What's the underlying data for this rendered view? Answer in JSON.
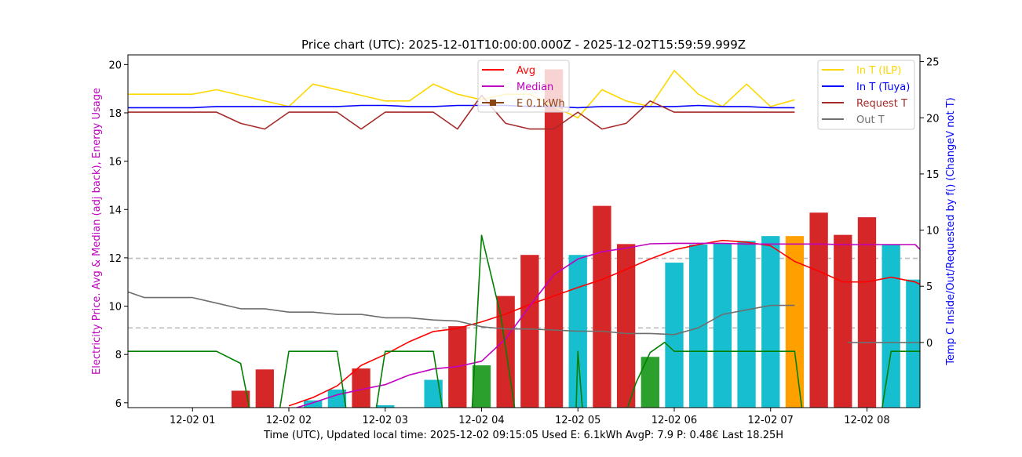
{
  "chart_data": {
    "type": "bar",
    "title": "Price chart (UTC): 2025-12-01T10:00:00.000Z - 2025-12-02T15:59:59.999Z",
    "xlabel": "Time (UTC), Updated local time: 2025-12-02 09:15:05 Used E: 6.1kWh AvgP: 7.9 P: 0.48€ Last 18.25H",
    "ylabel": "Electricity Price. Avg & Median (adj back), Energy Usage",
    "y2label": "Temp C Inside/Out/Requested by f() (ChangeV not T)",
    "xlim": [
      0.33,
      8.55
    ],
    "ylim": [
      5.8,
      20.4
    ],
    "y2lim": [
      -5.8,
      25.6
    ],
    "x_ticks": [
      1,
      2,
      3,
      4,
      5,
      6,
      7,
      8
    ],
    "x_tick_labels": [
      "12-02 01",
      "12-02 02",
      "12-02 03",
      "12-02 04",
      "12-02 05",
      "12-02 06",
      "12-02 07",
      "12-02 08"
    ],
    "y_ticks": [
      6,
      8,
      10,
      12,
      14,
      16,
      18,
      20
    ],
    "y2_ticks": [
      0,
      5,
      10,
      15,
      20,
      25
    ],
    "hlines": [
      11.98,
      9.1
    ],
    "bar_width": 0.19,
    "bars": [
      {
        "x": 1.5,
        "value": 6.5,
        "color": "#d62728"
      },
      {
        "x": 1.75,
        "value": 7.38,
        "color": "#d62728"
      },
      {
        "x": 2.25,
        "value": 6.1,
        "color": "#17becf"
      },
      {
        "x": 2.5,
        "value": 6.55,
        "color": "#17becf"
      },
      {
        "x": 2.75,
        "value": 7.42,
        "color": "#d62728"
      },
      {
        "x": 3.0,
        "value": 5.9,
        "color": "#17becf"
      },
      {
        "x": 3.5,
        "value": 6.95,
        "color": "#17becf"
      },
      {
        "x": 3.75,
        "value": 9.17,
        "color": "#d62728"
      },
      {
        "x": 4.0,
        "value": 7.55,
        "color": "#2ca02c"
      },
      {
        "x": 4.25,
        "value": 10.42,
        "color": "#d62728"
      },
      {
        "x": 4.5,
        "value": 12.12,
        "color": "#d62728"
      },
      {
        "x": 4.75,
        "value": 19.8,
        "color": "#d62728"
      },
      {
        "x": 5.0,
        "value": 12.12,
        "color": "#17becf"
      },
      {
        "x": 5.25,
        "value": 14.15,
        "color": "#d62728"
      },
      {
        "x": 5.5,
        "value": 12.57,
        "color": "#d62728"
      },
      {
        "x": 5.75,
        "value": 7.9,
        "color": "#2ca02c"
      },
      {
        "x": 6.0,
        "value": 11.8,
        "color": "#17becf"
      },
      {
        "x": 6.25,
        "value": 12.55,
        "color": "#17becf"
      },
      {
        "x": 6.5,
        "value": 12.6,
        "color": "#17becf"
      },
      {
        "x": 6.75,
        "value": 12.7,
        "color": "#17becf"
      },
      {
        "x": 7.0,
        "value": 12.9,
        "color": "#17becf"
      },
      {
        "x": 7.25,
        "value": 12.9,
        "color": "#ff9f00"
      },
      {
        "x": 7.5,
        "value": 13.87,
        "color": "#d62728"
      },
      {
        "x": 7.75,
        "value": 12.95,
        "color": "#d62728"
      },
      {
        "x": 8.0,
        "value": 13.68,
        "color": "#d62728"
      },
      {
        "x": 8.25,
        "value": 12.55,
        "color": "#17becf"
      },
      {
        "x": 8.5,
        "value": 11.1,
        "color": "#17becf"
      }
    ],
    "series": [
      {
        "name": "Avg",
        "axis": "left",
        "color": "#ff0000",
        "width": 1.6,
        "x": [
          2.0,
          2.25,
          2.5,
          2.75,
          3.0,
          3.25,
          3.5,
          3.75,
          4.0,
          4.25,
          4.5,
          4.75,
          5.0,
          5.25,
          5.5,
          5.75,
          6.0,
          6.25,
          6.5,
          6.75,
          7.0,
          7.25,
          7.5,
          7.75,
          8.0,
          8.25,
          8.5,
          8.55
        ],
        "y": [
          5.87,
          6.22,
          6.7,
          7.55,
          8.0,
          8.53,
          8.95,
          9.08,
          9.35,
          9.67,
          10.07,
          10.42,
          10.77,
          11.1,
          11.52,
          11.95,
          12.33,
          12.55,
          12.72,
          12.65,
          12.5,
          11.85,
          11.45,
          11.0,
          11.0,
          11.2,
          11.0,
          10.9
        ]
      },
      {
        "name": "Median",
        "axis": "left",
        "color": "#c000c0",
        "width": 1.6,
        "x": [
          2.0,
          2.25,
          2.5,
          2.75,
          3.0,
          3.25,
          3.5,
          3.75,
          4.0,
          4.25,
          4.5,
          4.75,
          5.0,
          5.25,
          5.5,
          5.75,
          6.0,
          6.25,
          6.5,
          6.75,
          7.0,
          7.25,
          7.5,
          7.75,
          8.0,
          8.25,
          8.5,
          8.55
        ],
        "y": [
          5.7,
          6.0,
          6.33,
          6.55,
          6.75,
          7.15,
          7.4,
          7.5,
          7.72,
          8.65,
          10.0,
          11.3,
          11.95,
          12.25,
          12.4,
          12.58,
          12.6,
          12.6,
          12.6,
          12.57,
          12.57,
          12.57,
          12.57,
          12.55,
          12.55,
          12.55,
          12.55,
          12.35
        ]
      },
      {
        "name": "E 0.1kWh",
        "axis": "left",
        "color": "#008000",
        "width": 1.6,
        "x": [
          0.33,
          1.25,
          1.5,
          1.6,
          1.75,
          1.9,
          2.0,
          2.5,
          2.6,
          2.75,
          2.9,
          3.0,
          3.5,
          3.6,
          3.75,
          3.9,
          4.0,
          4.2,
          4.35,
          4.75,
          4.98,
          5.0,
          5.05,
          5.2,
          5.5,
          5.6,
          5.75,
          5.9,
          6.0,
          7.25,
          7.33,
          8.15,
          8.25,
          8.55
        ],
        "y": [
          8.13,
          8.13,
          7.63,
          5.6,
          5.6,
          5.6,
          8.13,
          8.13,
          5.6,
          5.6,
          5.6,
          8.13,
          8.13,
          5.6,
          5.6,
          5.6,
          12.93,
          9.6,
          5.6,
          5.6,
          5.6,
          8.13,
          5.6,
          5.6,
          5.6,
          6.8,
          8.08,
          8.5,
          8.13,
          8.13,
          5.6,
          5.6,
          8.13,
          8.13
        ]
      },
      {
        "name": "In T (ILP)",
        "axis": "right",
        "color": "#ffd700",
        "width": 1.6,
        "x": [
          0.33,
          0.5,
          0.75,
          1.0,
          1.25,
          1.5,
          1.75,
          2.0,
          2.25,
          2.5,
          2.75,
          3.0,
          3.25,
          3.5,
          3.75,
          4.0,
          4.25,
          4.5,
          4.75,
          5.0,
          5.25,
          5.5,
          5.75,
          6.0,
          6.25,
          6.5,
          6.75,
          7.0,
          7.25
        ],
        "y": [
          22.1,
          22.1,
          22.1,
          22.1,
          22.5,
          22.0,
          21.5,
          21.0,
          23.0,
          22.5,
          22.0,
          21.5,
          21.5,
          23.0,
          22.1,
          21.6,
          22.1,
          22.1,
          21.0,
          20.0,
          22.5,
          21.5,
          21.0,
          24.2,
          22.1,
          21.0,
          23.0,
          21.0,
          21.6
        ]
      },
      {
        "name": "In T (Tuya)",
        "axis": "right",
        "color": "#0000ff",
        "width": 1.6,
        "x": [
          0.33,
          0.5,
          0.75,
          1.0,
          1.25,
          1.5,
          1.75,
          2.0,
          2.25,
          2.5,
          2.75,
          3.0,
          3.25,
          3.5,
          3.75,
          4.0,
          4.25,
          4.5,
          4.75,
          5.0,
          5.25,
          5.5,
          5.75,
          6.0,
          6.25,
          6.5,
          6.75,
          7.0,
          7.25
        ],
        "y": [
          20.9,
          20.9,
          20.9,
          20.9,
          21.0,
          21.0,
          21.0,
          21.0,
          21.0,
          21.0,
          21.1,
          21.1,
          21.0,
          21.0,
          21.1,
          21.1,
          21.1,
          21.0,
          21.0,
          20.9,
          21.0,
          21.0,
          21.0,
          21.0,
          21.1,
          21.0,
          21.0,
          20.9,
          20.9
        ]
      },
      {
        "name": "Request T",
        "axis": "right",
        "color": "#a52a2a",
        "width": 1.6,
        "x": [
          0.33,
          0.5,
          0.75,
          1.0,
          1.25,
          1.5,
          1.75,
          2.0,
          2.25,
          2.5,
          2.75,
          3.0,
          3.25,
          3.5,
          3.75,
          4.0,
          4.25,
          4.5,
          4.75,
          5.0,
          5.25,
          5.5,
          5.75,
          6.0,
          6.25,
          6.5,
          6.75,
          7.0,
          7.25
        ],
        "y": [
          20.5,
          20.5,
          20.5,
          20.5,
          20.5,
          19.5,
          19.0,
          20.5,
          20.5,
          20.5,
          19.0,
          20.5,
          20.5,
          20.5,
          19.0,
          22.0,
          19.5,
          19.0,
          19.0,
          20.5,
          19.0,
          19.5,
          21.5,
          20.5,
          20.5,
          20.5,
          20.5,
          20.5,
          20.5
        ]
      },
      {
        "name": "Out T",
        "axis": "right",
        "color": "#6e6e6e",
        "width": 1.6,
        "x": [
          0.33,
          0.5,
          0.75,
          1.0,
          1.25,
          1.5,
          1.75,
          2.0,
          2.25,
          2.5,
          2.75,
          3.0,
          3.25,
          3.5,
          3.75,
          4.0,
          4.25,
          4.5,
          4.75,
          5.0,
          5.25,
          5.5,
          5.75,
          6.0,
          6.25,
          6.5,
          6.75,
          7.0,
          7.25
        ],
        "y": [
          4.5,
          4.0,
          4.0,
          4.0,
          3.5,
          3.0,
          3.0,
          2.7,
          2.7,
          2.5,
          2.5,
          2.2,
          2.2,
          2.0,
          1.9,
          1.4,
          1.2,
          1.2,
          1.1,
          1.0,
          1.0,
          0.8,
          0.8,
          0.7,
          1.3,
          2.5,
          2.9,
          3.3,
          3.3
        ]
      },
      {
        "name": "Out T (forecast)",
        "axis": "right",
        "color": "#6e6e6e",
        "width": 1.6,
        "x": [
          7.8,
          8.55
        ],
        "y": [
          0.0,
          0.0
        ]
      }
    ],
    "legend_left": {
      "position": "top-center",
      "entries": [
        {
          "label": "Avg",
          "color": "#ff0000",
          "marker": false
        },
        {
          "label": "Median",
          "color": "#c000c0",
          "marker": false
        },
        {
          "label": "E 0.1kWh",
          "color": "#8b4513",
          "marker": true
        }
      ]
    },
    "legend_right": {
      "position": "top-right",
      "entries": [
        {
          "label": "In T (ILP)",
          "color": "#ffd700"
        },
        {
          "label": "In T (Tuya)",
          "color": "#0000ff"
        },
        {
          "label": "Request T",
          "color": "#a52a2a"
        },
        {
          "label": "Out T",
          "color": "#6e6e6e"
        }
      ]
    }
  }
}
